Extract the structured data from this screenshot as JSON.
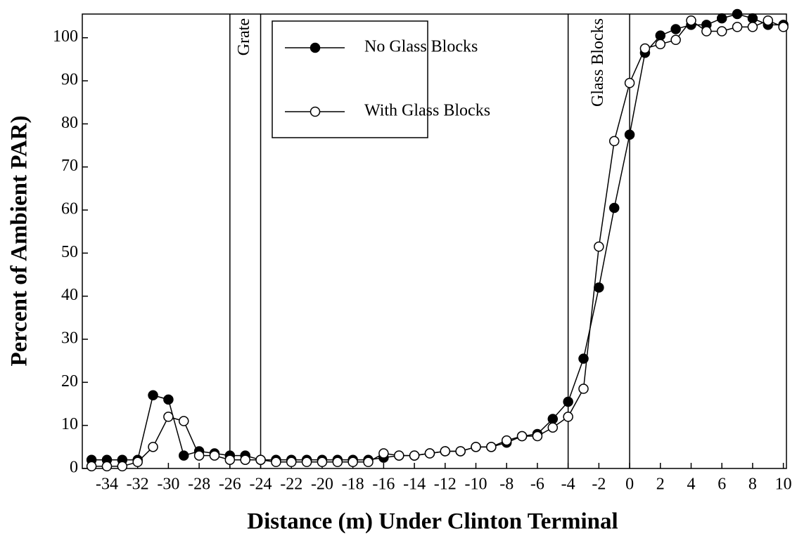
{
  "chart_data": {
    "type": "line",
    "xlabel": "Distance (m) Under Clinton Terminal",
    "ylabel": "Percent of Ambient PAR)",
    "x": [
      -35,
      -34,
      -33,
      -32,
      -31,
      -30,
      -29,
      -28,
      -27,
      -26,
      -25,
      -24,
      -23,
      -22,
      -21,
      -20,
      -19,
      -18,
      -17,
      -16,
      -15,
      -14,
      -13,
      -12,
      -11,
      -10,
      -9,
      -8,
      -7,
      -6,
      -5,
      -4,
      -3,
      -2,
      -1,
      0,
      1,
      2,
      3,
      4,
      5,
      6,
      7,
      8,
      9,
      10
    ],
    "series": [
      {
        "name": "No Glass Blocks",
        "color": "#000000",
        "marker": "filled",
        "values": [
          2,
          2,
          2,
          2,
          17,
          16,
          3,
          4,
          3.5,
          3,
          3,
          2,
          2,
          2,
          2,
          2,
          2,
          2,
          2,
          2.5,
          3,
          3,
          3.5,
          4,
          4,
          5,
          5,
          6,
          7.5,
          8,
          11.5,
          15.5,
          25.5,
          42,
          60.5,
          77.5,
          96.5,
          100.5,
          102,
          103,
          103,
          104.5,
          105.5,
          104.5,
          103,
          103
        ]
      },
      {
        "name": "With Glass Blocks",
        "color": "#000000",
        "marker": "open",
        "values": [
          0.5,
          0.5,
          0.5,
          1.5,
          5,
          12,
          11,
          3,
          3,
          2,
          2,
          2,
          1.5,
          1.5,
          1.5,
          1.5,
          1.5,
          1.5,
          1.5,
          3.5,
          3,
          3,
          3.5,
          4,
          4,
          5,
          5,
          6.5,
          7.5,
          7.5,
          9.5,
          12,
          18.5,
          51.5,
          76,
          89.5,
          97.5,
          98.5,
          99.5,
          104,
          101.5,
          101.5,
          102.5,
          102.5,
          104,
          102.5
        ]
      }
    ],
    "xlim": [
      -35.6,
      10.2
    ],
    "ylim": [
      0,
      105.5
    ],
    "xticks": [
      -34,
      -32,
      -30,
      -28,
      -26,
      -24,
      -22,
      -20,
      -18,
      -16,
      -14,
      -12,
      -10,
      -8,
      -6,
      -4,
      -2,
      0,
      2,
      4,
      6,
      8,
      10
    ],
    "yticks": [
      0,
      10,
      20,
      30,
      40,
      50,
      60,
      70,
      80,
      90,
      100
    ],
    "vlines": [
      -26,
      -24,
      -4,
      0
    ],
    "annotations": [
      {
        "text": "Grate",
        "x": -25
      },
      {
        "text": "Glass Blocks",
        "x": -2
      }
    ]
  }
}
